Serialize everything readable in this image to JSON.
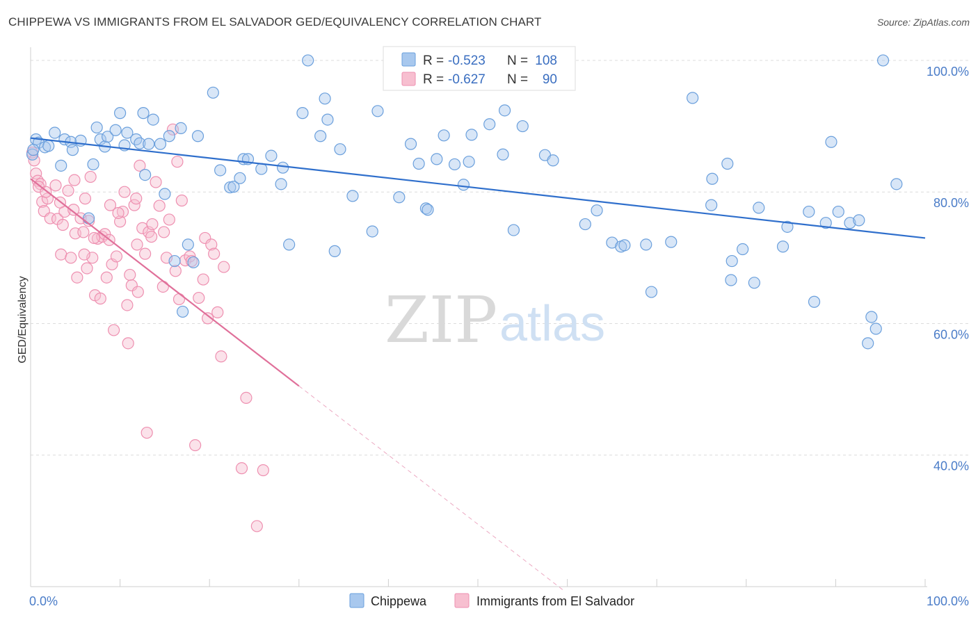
{
  "title": "CHIPPEWA VS IMMIGRANTS FROM EL SALVADOR GED/EQUIVALENCY CORRELATION CHART",
  "source": "Source: ZipAtlas.com",
  "watermark": {
    "zip": "ZIP",
    "atlas": "atlas"
  },
  "colors": {
    "chippewa_fill": "#a8c8ee",
    "chippewa_stroke": "#6a9fdc",
    "chippewa_line": "#2f6fcc",
    "salvador_fill": "#f7bfd0",
    "salvador_stroke": "#ee8fb0",
    "salvador_line": "#e0709a",
    "grid": "#dcdcdc",
    "tick_text": "#4a7cc8"
  },
  "stats_box": {
    "rows": [
      {
        "series": "chippewa",
        "r_label": "R = ",
        "r_value": "-0.523",
        "n_label": "N = ",
        "n_value": "108"
      },
      {
        "series": "salvador",
        "r_label": "R = ",
        "r_value": "-0.627",
        "n_label": "N = ",
        "n_value": "90"
      }
    ]
  },
  "chart_data": {
    "type": "scatter",
    "title": "CHIPPEWA VS IMMIGRANTS FROM EL SALVADOR GED/EQUIVALENCY CORRELATION CHART",
    "xlabel": "",
    "ylabel": "GED/Equivalency",
    "xlim": [
      0,
      100
    ],
    "ylim": [
      20,
      102
    ],
    "x_tick_labels": [
      {
        "value": 0,
        "label": "0.0%"
      },
      {
        "value": 100,
        "label": "100.0%"
      }
    ],
    "y_tick_labels": [
      {
        "value": 40,
        "label": "40.0%"
      },
      {
        "value": 60,
        "label": "60.0%"
      },
      {
        "value": 80,
        "label": "80.0%"
      },
      {
        "value": 100,
        "label": "100.0%"
      }
    ],
    "grid": true,
    "legend": {
      "placement": "bottom-center",
      "entries": [
        "Chippewa",
        "Immigrants from El Salvador"
      ]
    },
    "series": [
      {
        "name": "Chippewa",
        "key": "chippewa",
        "trend": {
          "x": [
            0,
            100
          ],
          "y": [
            88.2,
            73.0
          ]
        },
        "points": [
          [
            0.6,
            88.0
          ],
          [
            0.9,
            87.5
          ],
          [
            1.6,
            86.8
          ],
          [
            2.0,
            87.0
          ],
          [
            2.7,
            89.0
          ],
          [
            3.4,
            84.0
          ],
          [
            3.8,
            88.0
          ],
          [
            4.5,
            87.6
          ],
          [
            4.7,
            86.4
          ],
          [
            5.6,
            87.8
          ],
          [
            6.5,
            76.0
          ],
          [
            7.0,
            84.2
          ],
          [
            7.4,
            89.8
          ],
          [
            7.8,
            88.0
          ],
          [
            8.3,
            86.9
          ],
          [
            8.6,
            88.4
          ],
          [
            9.5,
            89.4
          ],
          [
            10.0,
            92.0
          ],
          [
            10.5,
            87.1
          ],
          [
            10.8,
            89.0
          ],
          [
            11.8,
            88.0
          ],
          [
            12.2,
            87.4
          ],
          [
            12.6,
            92.0
          ],
          [
            12.8,
            82.6
          ],
          [
            13.2,
            87.3
          ],
          [
            13.7,
            91.0
          ],
          [
            14.5,
            87.3
          ],
          [
            15.0,
            79.7
          ],
          [
            15.5,
            88.5
          ],
          [
            16.1,
            69.5
          ],
          [
            16.8,
            89.7
          ],
          [
            17.0,
            61.8
          ],
          [
            17.6,
            72.0
          ],
          [
            18.2,
            69.3
          ],
          [
            18.7,
            88.5
          ],
          [
            20.4,
            95.1
          ],
          [
            21.2,
            83.3
          ],
          [
            22.3,
            80.7
          ],
          [
            22.7,
            80.8
          ],
          [
            23.4,
            82.1
          ],
          [
            23.8,
            85.0
          ],
          [
            24.3,
            85.0
          ],
          [
            25.8,
            83.5
          ],
          [
            26.9,
            85.5
          ],
          [
            28.0,
            81.2
          ],
          [
            28.2,
            83.7
          ],
          [
            28.9,
            72.0
          ],
          [
            30.4,
            92.0
          ],
          [
            31.0,
            100.0
          ],
          [
            32.4,
            88.5
          ],
          [
            32.9,
            94.2
          ],
          [
            33.2,
            91.0
          ],
          [
            34.0,
            71.0
          ],
          [
            34.6,
            86.5
          ],
          [
            36.0,
            79.4
          ],
          [
            38.2,
            74.0
          ],
          [
            38.8,
            92.3
          ],
          [
            41.2,
            79.2
          ],
          [
            42.5,
            87.3
          ],
          [
            43.4,
            84.3
          ],
          [
            44.2,
            77.5
          ],
          [
            44.4,
            77.3
          ],
          [
            45.4,
            85.0
          ],
          [
            46.2,
            88.6
          ],
          [
            47.4,
            84.2
          ],
          [
            48.4,
            81.1
          ],
          [
            49.0,
            84.6
          ],
          [
            49.3,
            88.7
          ],
          [
            51.3,
            90.3
          ],
          [
            52.8,
            85.7
          ],
          [
            53.0,
            92.4
          ],
          [
            54.0,
            74.2
          ],
          [
            55.0,
            90.0
          ],
          [
            57.5,
            85.6
          ],
          [
            58.4,
            84.8
          ],
          [
            62.0,
            75.1
          ],
          [
            63.3,
            77.2
          ],
          [
            65.0,
            72.3
          ],
          [
            66.0,
            71.7
          ],
          [
            66.4,
            71.9
          ],
          [
            68.8,
            72.0
          ],
          [
            69.4,
            64.8
          ],
          [
            71.6,
            72.4
          ],
          [
            74.0,
            94.3
          ],
          [
            76.1,
            78.0
          ],
          [
            76.2,
            82.0
          ],
          [
            77.9,
            84.3
          ],
          [
            78.3,
            66.6
          ],
          [
            78.4,
            69.5
          ],
          [
            79.6,
            71.3
          ],
          [
            80.9,
            66.2
          ],
          [
            81.4,
            77.6
          ],
          [
            84.1,
            71.7
          ],
          [
            84.6,
            74.7
          ],
          [
            87.0,
            77.0
          ],
          [
            87.6,
            63.3
          ],
          [
            88.9,
            75.3
          ],
          [
            89.5,
            87.6
          ],
          [
            90.3,
            77.0
          ],
          [
            91.6,
            75.3
          ],
          [
            92.6,
            75.7
          ],
          [
            93.6,
            57.0
          ],
          [
            94.0,
            61.0
          ],
          [
            94.5,
            59.2
          ],
          [
            95.3,
            100.0
          ],
          [
            96.8,
            81.2
          ],
          [
            0.2,
            85.7
          ],
          [
            0.3,
            86.4
          ]
        ]
      },
      {
        "name": "Immigrants from El Salvador",
        "key": "salvador",
        "trend": {
          "x": [
            0,
            30
          ],
          "y": [
            82.0,
            50.5
          ]
        },
        "trend_dashed": {
          "x": [
            30,
            59.7
          ],
          "y": [
            50.5,
            19.3
          ]
        },
        "points": [
          [
            0.2,
            86.0
          ],
          [
            0.4,
            84.8
          ],
          [
            0.6,
            82.8
          ],
          [
            0.8,
            81.7
          ],
          [
            1.1,
            81.2
          ],
          [
            1.3,
            78.5
          ],
          [
            1.5,
            77.1
          ],
          [
            1.9,
            79.0
          ],
          [
            2.2,
            76.0
          ],
          [
            2.8,
            81.0
          ],
          [
            3.0,
            75.9
          ],
          [
            3.4,
            70.5
          ],
          [
            3.6,
            75.0
          ],
          [
            3.8,
            77.0
          ],
          [
            4.2,
            80.2
          ],
          [
            4.5,
            70.0
          ],
          [
            4.8,
            77.3
          ],
          [
            5.0,
            73.7
          ],
          [
            5.2,
            67.0
          ],
          [
            5.6,
            76.0
          ],
          [
            5.9,
            73.9
          ],
          [
            6.1,
            79.0
          ],
          [
            6.3,
            68.4
          ],
          [
            6.5,
            75.6
          ],
          [
            6.7,
            82.3
          ],
          [
            6.9,
            70.0
          ],
          [
            7.2,
            64.3
          ],
          [
            7.5,
            72.9
          ],
          [
            7.8,
            63.8
          ],
          [
            8.0,
            73.2
          ],
          [
            8.3,
            73.6
          ],
          [
            8.5,
            67.0
          ],
          [
            8.9,
            78.0
          ],
          [
            9.1,
            69.0
          ],
          [
            9.3,
            59.0
          ],
          [
            9.6,
            70.2
          ],
          [
            10.0,
            75.5
          ],
          [
            10.3,
            77.0
          ],
          [
            10.5,
            80.0
          ],
          [
            10.8,
            62.8
          ],
          [
            10.9,
            57.0
          ],
          [
            11.1,
            67.4
          ],
          [
            11.3,
            65.8
          ],
          [
            11.6,
            78.0
          ],
          [
            11.8,
            79.0
          ],
          [
            12.2,
            84.0
          ],
          [
            12.5,
            74.5
          ],
          [
            12.8,
            70.6
          ],
          [
            13.0,
            43.4
          ],
          [
            13.2,
            73.9
          ],
          [
            13.6,
            75.1
          ],
          [
            14.0,
            81.5
          ],
          [
            14.4,
            77.9
          ],
          [
            14.8,
            65.6
          ],
          [
            15.2,
            70.0
          ],
          [
            15.5,
            75.8
          ],
          [
            15.9,
            89.5
          ],
          [
            16.2,
            68.0
          ],
          [
            16.6,
            63.7
          ],
          [
            16.9,
            78.7
          ],
          [
            17.3,
            69.6
          ],
          [
            17.8,
            70.2
          ],
          [
            18.0,
            69.5
          ],
          [
            18.4,
            41.5
          ],
          [
            18.8,
            63.9
          ],
          [
            19.3,
            66.7
          ],
          [
            19.5,
            73.0
          ],
          [
            19.8,
            60.8
          ],
          [
            20.2,
            72.0
          ],
          [
            20.5,
            70.6
          ],
          [
            20.9,
            61.7
          ],
          [
            21.3,
            55.0
          ],
          [
            21.6,
            68.6
          ],
          [
            23.6,
            38.0
          ],
          [
            24.1,
            48.7
          ],
          [
            25.3,
            29.2
          ],
          [
            26.0,
            37.7
          ],
          [
            13.5,
            73.2
          ],
          [
            8.8,
            72.7
          ],
          [
            0.9,
            80.8
          ],
          [
            1.7,
            80.0
          ],
          [
            12.0,
            64.8
          ],
          [
            16.4,
            84.6
          ],
          [
            3.3,
            78.4
          ],
          [
            9.8,
            76.8
          ],
          [
            4.9,
            81.8
          ],
          [
            11.9,
            72.0
          ],
          [
            14.9,
            73.9
          ],
          [
            6.0,
            70.5
          ],
          [
            7.1,
            73.0
          ]
        ]
      }
    ]
  }
}
